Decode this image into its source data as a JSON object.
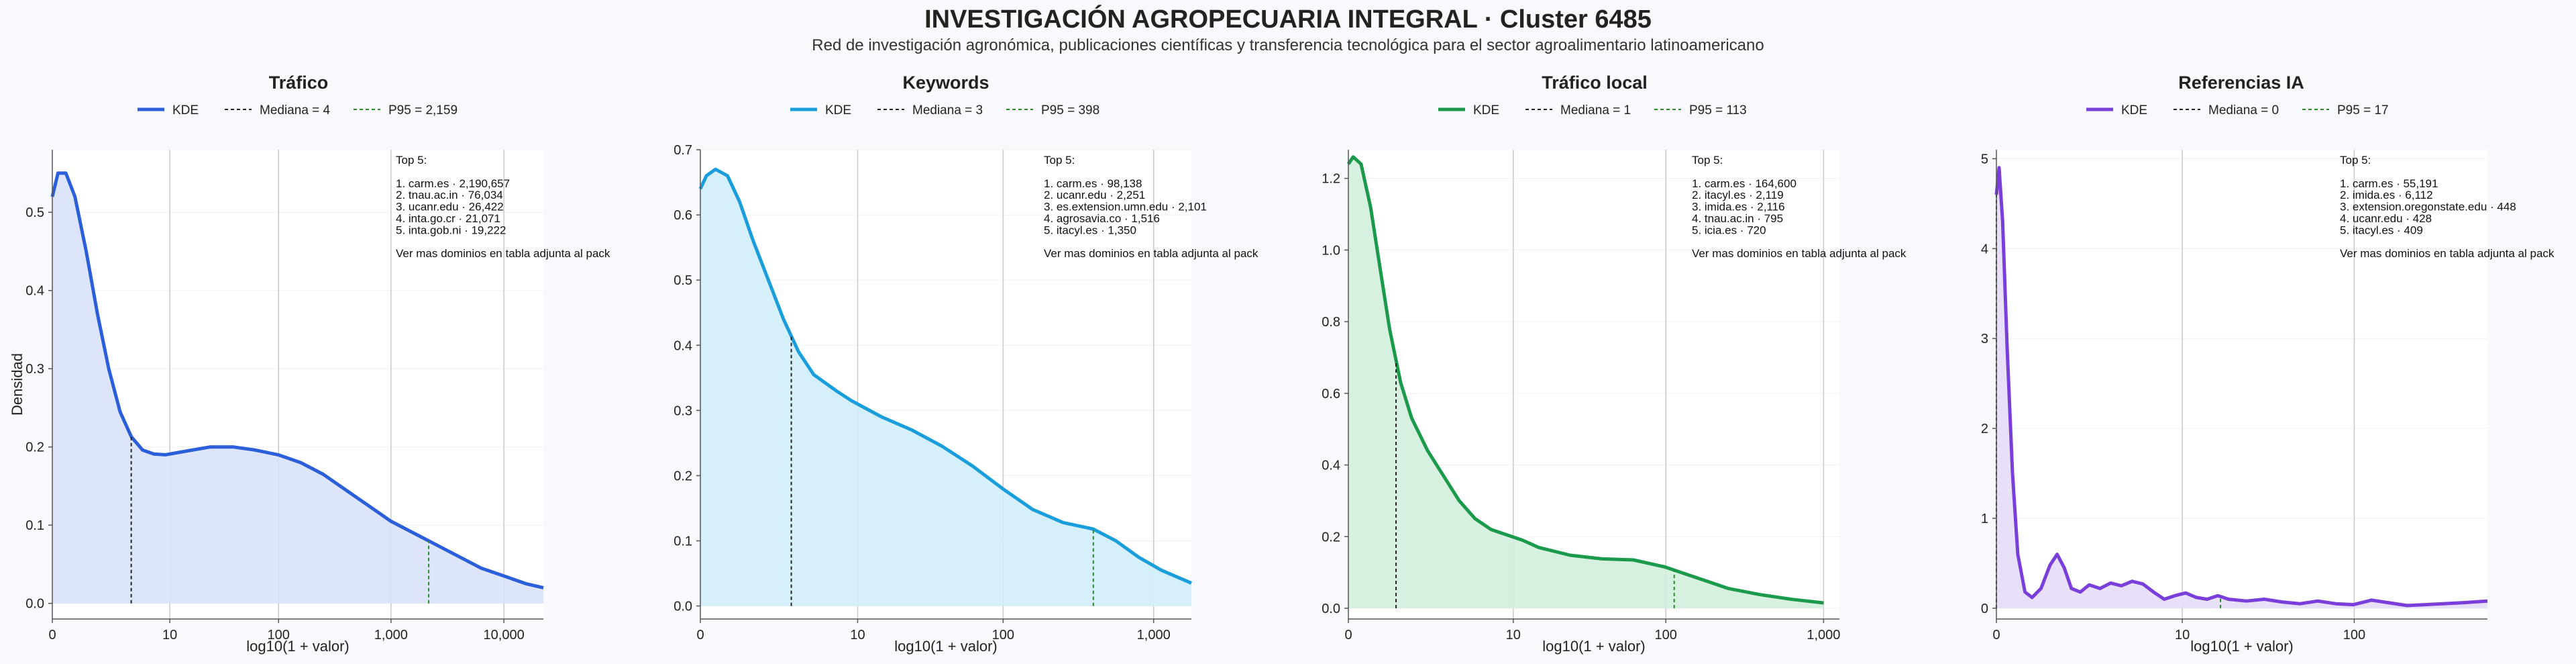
{
  "header": {
    "title": "INVESTIGACIÓN AGROPECUARIA INTEGRAL · Cluster 6485",
    "subtitle": "Red de investigación agronómica, publicaciones científicas y transferencia tecnológica para el sector agroalimentario latinoamericano"
  },
  "shared": {
    "ylabel": "Densidad",
    "xlabel": "log10(1 + valor)",
    "topbox_heading": "Top 5:",
    "topbox_footer": "Ver mas dominios en tabla adjunta al pack",
    "legend_kde": "KDE"
  },
  "chart_data": [
    {
      "type": "line",
      "title": "Tráfico",
      "color": "#2b5fd9",
      "fill": "#d9e2fa",
      "xlabel": "log10(1 + valor)",
      "ylabel": "Densidad",
      "xlim": [
        0,
        4.35
      ],
      "ylim": [
        -0.02,
        0.58
      ],
      "xticks": [
        {
          "v": 0,
          "l": "0"
        },
        {
          "v": 1.041,
          "l": "10"
        },
        {
          "v": 2.004,
          "l": "100"
        },
        {
          "v": 3.0,
          "l": "1,000"
        },
        {
          "v": 4.0,
          "l": "10,000"
        }
      ],
      "yticks": [
        0.0,
        0.1,
        0.2,
        0.3,
        0.4,
        0.5
      ],
      "ytick_labels": [
        "0.0",
        "0.1",
        "0.2",
        "0.3",
        "0.4",
        "0.5"
      ],
      "legend": [
        "KDE",
        "Mediana = 4",
        "P95 = 2,159"
      ],
      "median_x": 0.699,
      "p95_x": 3.334,
      "x": [
        0,
        0.05,
        0.12,
        0.2,
        0.3,
        0.4,
        0.5,
        0.6,
        0.7,
        0.8,
        0.9,
        1.0,
        1.2,
        1.4,
        1.6,
        1.8,
        2.0,
        2.2,
        2.4,
        2.6,
        2.8,
        3.0,
        3.2,
        3.4,
        3.6,
        3.8,
        4.0,
        4.2,
        4.35
      ],
      "y": [
        0.52,
        0.55,
        0.55,
        0.52,
        0.45,
        0.37,
        0.3,
        0.245,
        0.213,
        0.196,
        0.191,
        0.19,
        0.195,
        0.2,
        0.2,
        0.196,
        0.19,
        0.18,
        0.165,
        0.145,
        0.125,
        0.105,
        0.09,
        0.075,
        0.06,
        0.045,
        0.035,
        0.025,
        0.02
      ],
      "top5": [
        "1. carm.es · 2,190,657",
        "2. tnau.ac.in · 76,034",
        "3. ucanr.edu · 26,422",
        "4. inta.go.cr · 21,071",
        "5. inta.gob.ni · 19,222"
      ]
    },
    {
      "type": "line",
      "title": "Keywords",
      "color": "#1a9edb",
      "fill": "#d2eefb",
      "xlabel": "log10(1 + valor)",
      "ylabel": "",
      "xlim": [
        0,
        3.25
      ],
      "ylim": [
        -0.02,
        0.7
      ],
      "xticks": [
        {
          "v": 0,
          "l": "0"
        },
        {
          "v": 1.041,
          "l": "10"
        },
        {
          "v": 2.004,
          "l": "100"
        },
        {
          "v": 3.0,
          "l": "1,000"
        }
      ],
      "yticks": [
        0.0,
        0.1,
        0.2,
        0.3,
        0.4,
        0.5,
        0.6,
        0.7
      ],
      "ytick_labels": [
        "0.0",
        "0.1",
        "0.2",
        "0.3",
        "0.4",
        "0.5",
        "0.6",
        "0.7"
      ],
      "legend": [
        "KDE",
        "Mediana = 3",
        "P95 = 398"
      ],
      "median_x": 0.602,
      "p95_x": 2.601,
      "x": [
        0,
        0.04,
        0.1,
        0.18,
        0.26,
        0.35,
        0.45,
        0.55,
        0.65,
        0.75,
        0.9,
        1.0,
        1.2,
        1.4,
        1.6,
        1.8,
        2.0,
        2.2,
        2.4,
        2.6,
        2.75,
        2.9,
        3.05,
        3.25
      ],
      "y": [
        0.64,
        0.66,
        0.67,
        0.66,
        0.62,
        0.56,
        0.5,
        0.44,
        0.39,
        0.355,
        0.33,
        0.315,
        0.29,
        0.27,
        0.245,
        0.215,
        0.18,
        0.148,
        0.128,
        0.118,
        0.1,
        0.075,
        0.055,
        0.035
      ],
      "top5": [
        "1. carm.es · 98,138",
        "2. ucanr.edu · 2,251",
        "3. es.extension.umn.edu · 2,101",
        "4. agrosavia.co · 1,516",
        "5. itacyl.es · 1,350"
      ]
    },
    {
      "type": "line",
      "title": "Tráfico local",
      "color": "#1a9a4a",
      "fill": "#d3efdd",
      "xlabel": "log10(1 + valor)",
      "ylabel": "",
      "xlim": [
        0,
        3.1
      ],
      "ylim": [
        -0.03,
        1.28
      ],
      "xticks": [
        {
          "v": 0,
          "l": "0"
        },
        {
          "v": 1.041,
          "l": "10"
        },
        {
          "v": 2.004,
          "l": "100"
        },
        {
          "v": 3.0,
          "l": "1,000"
        }
      ],
      "yticks": [
        0.0,
        0.2,
        0.4,
        0.6,
        0.8,
        1.0,
        1.2
      ],
      "ytick_labels": [
        "0.0",
        "0.2",
        "0.4",
        "0.6",
        "0.8",
        "1.0",
        "1.2"
      ],
      "legend": [
        "KDE",
        "Mediana = 1",
        "P95 = 113"
      ],
      "median_x": 0.301,
      "p95_x": 2.057,
      "x": [
        0,
        0.03,
        0.08,
        0.14,
        0.2,
        0.26,
        0.33,
        0.4,
        0.5,
        0.6,
        0.7,
        0.8,
        0.9,
        1.0,
        1.1,
        1.2,
        1.4,
        1.6,
        1.8,
        2.0,
        2.2,
        2.4,
        2.6,
        2.8,
        3.0
      ],
      "y": [
        1.24,
        1.26,
        1.24,
        1.12,
        0.95,
        0.78,
        0.63,
        0.53,
        0.44,
        0.37,
        0.3,
        0.25,
        0.22,
        0.205,
        0.19,
        0.17,
        0.148,
        0.138,
        0.135,
        0.115,
        0.085,
        0.055,
        0.038,
        0.025,
        0.015
      ],
      "top5": [
        "1. carm.es · 164,600",
        "2. itacyl.es · 2,119",
        "3. imida.es · 2,116",
        "4. tnau.ac.in · 795",
        "5. icia.es · 720"
      ]
    },
    {
      "type": "line",
      "title": "Referencias IA",
      "color": "#7a3fdb",
      "fill": "#e6dcf7",
      "xlabel": "log10(1 + valor)",
      "ylabel": "",
      "xlim": [
        0,
        2.75
      ],
      "ylim": [
        -0.12,
        5.1
      ],
      "xticks": [
        {
          "v": 0,
          "l": "0"
        },
        {
          "v": 1.041,
          "l": "10"
        },
        {
          "v": 2.004,
          "l": "100"
        }
      ],
      "yticks": [
        0,
        1,
        2,
        3,
        4,
        5
      ],
      "ytick_labels": [
        "0",
        "1",
        "2",
        "3",
        "4",
        "5"
      ],
      "legend": [
        "KDE",
        "Mediana = 0",
        "P95 = 17"
      ],
      "median_x": 0.0,
      "p95_x": 1.255,
      "x": [
        0,
        0.015,
        0.035,
        0.06,
        0.09,
        0.12,
        0.16,
        0.2,
        0.25,
        0.3,
        0.34,
        0.38,
        0.42,
        0.47,
        0.52,
        0.58,
        0.64,
        0.7,
        0.76,
        0.82,
        0.88,
        0.94,
        1.0,
        1.06,
        1.12,
        1.18,
        1.24,
        1.3,
        1.4,
        1.5,
        1.6,
        1.7,
        1.8,
        1.9,
        2.0,
        2.1,
        2.2,
        2.3,
        2.4,
        2.5,
        2.6,
        2.75
      ],
      "y": [
        4.6,
        4.9,
        4.3,
        2.9,
        1.5,
        0.6,
        0.18,
        0.12,
        0.22,
        0.48,
        0.6,
        0.45,
        0.22,
        0.18,
        0.26,
        0.22,
        0.28,
        0.25,
        0.3,
        0.27,
        0.18,
        0.1,
        0.14,
        0.17,
        0.12,
        0.1,
        0.14,
        0.1,
        0.08,
        0.1,
        0.07,
        0.05,
        0.08,
        0.05,
        0.04,
        0.09,
        0.06,
        0.03,
        0.04,
        0.05,
        0.06,
        0.08
      ],
      "top5": [
        "1. carm.es · 55,191",
        "2. imida.es · 6,112",
        "3. extension.oregonstate.edu · 448",
        "4. ucanr.edu · 428",
        "5. itacyl.es · 409"
      ]
    }
  ]
}
